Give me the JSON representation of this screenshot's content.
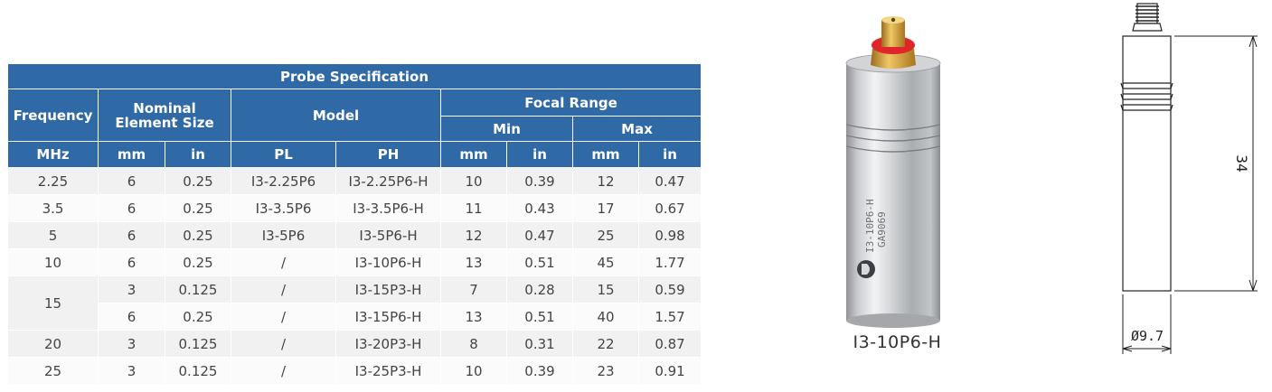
{
  "table": {
    "title": "Probe Specification",
    "headers": {
      "frequency": "Frequency",
      "nominal_line1": "Nominal",
      "nominal_line2": "Element Size",
      "model": "Model",
      "focal_range": "Focal Range",
      "min": "Min",
      "max": "Max"
    },
    "units": [
      "MHz",
      "mm",
      "in",
      "PL",
      "PH",
      "mm",
      "in",
      "mm",
      "in"
    ],
    "rows": [
      {
        "freq": "2.25",
        "mm": "6",
        "in": "0.25",
        "pl": "I3-2.25P6",
        "ph": "I3-2.25P6-H",
        "min_mm": "10",
        "min_in": "0.39",
        "max_mm": "12",
        "max_in": "0.47"
      },
      {
        "freq": "3.5",
        "mm": "6",
        "in": "0.25",
        "pl": "I3-3.5P6",
        "ph": "I3-3.5P6-H",
        "min_mm": "11",
        "min_in": "0.43",
        "max_mm": "17",
        "max_in": "0.67"
      },
      {
        "freq": "5",
        "mm": "6",
        "in": "0.25",
        "pl": "I3-5P6",
        "ph": "I3-5P6-H",
        "min_mm": "12",
        "min_in": "0.47",
        "max_mm": "25",
        "max_in": "0.98"
      },
      {
        "freq": "10",
        "mm": "6",
        "in": "0.25",
        "pl": "/",
        "ph": "I3-10P6-H",
        "min_mm": "13",
        "min_in": "0.51",
        "max_mm": "45",
        "max_in": "1.77"
      },
      {
        "freq": "15",
        "mm": "3",
        "in": "0.125",
        "pl": "/",
        "ph": "I3-15P3-H",
        "min_mm": "7",
        "min_in": "0.28",
        "max_mm": "15",
        "max_in": "0.59"
      },
      {
        "freq": "",
        "mm": "6",
        "in": "0.25",
        "pl": "/",
        "ph": "I3-15P6-H",
        "min_mm": "13",
        "min_in": "0.51",
        "max_mm": "40",
        "max_in": "1.57"
      },
      {
        "freq": "20",
        "mm": "3",
        "in": "0.125",
        "pl": "/",
        "ph": "I3-20P3-H",
        "min_mm": "8",
        "min_in": "0.31",
        "max_mm": "22",
        "max_in": "0.87"
      },
      {
        "freq": "25",
        "mm": "3",
        "in": "0.125",
        "pl": "/",
        "ph": "I3-25P3-H",
        "min_mm": "10",
        "min_in": "0.39",
        "max_mm": "23",
        "max_in": "0.91"
      }
    ]
  },
  "photo": {
    "caption": "I3-10P6-H",
    "engraving_model": "I3-10P6-H",
    "engraving_serial": "GA9069"
  },
  "drawing": {
    "length_label": "34",
    "diameter_label": "Ø9.7"
  },
  "colors": {
    "header_bg": "#2f6aa6",
    "row_odd": "#f1f1f1",
    "row_even": "#fbfbfb",
    "connector_red": "#e0262b",
    "connector_gold": "#d8a640"
  }
}
